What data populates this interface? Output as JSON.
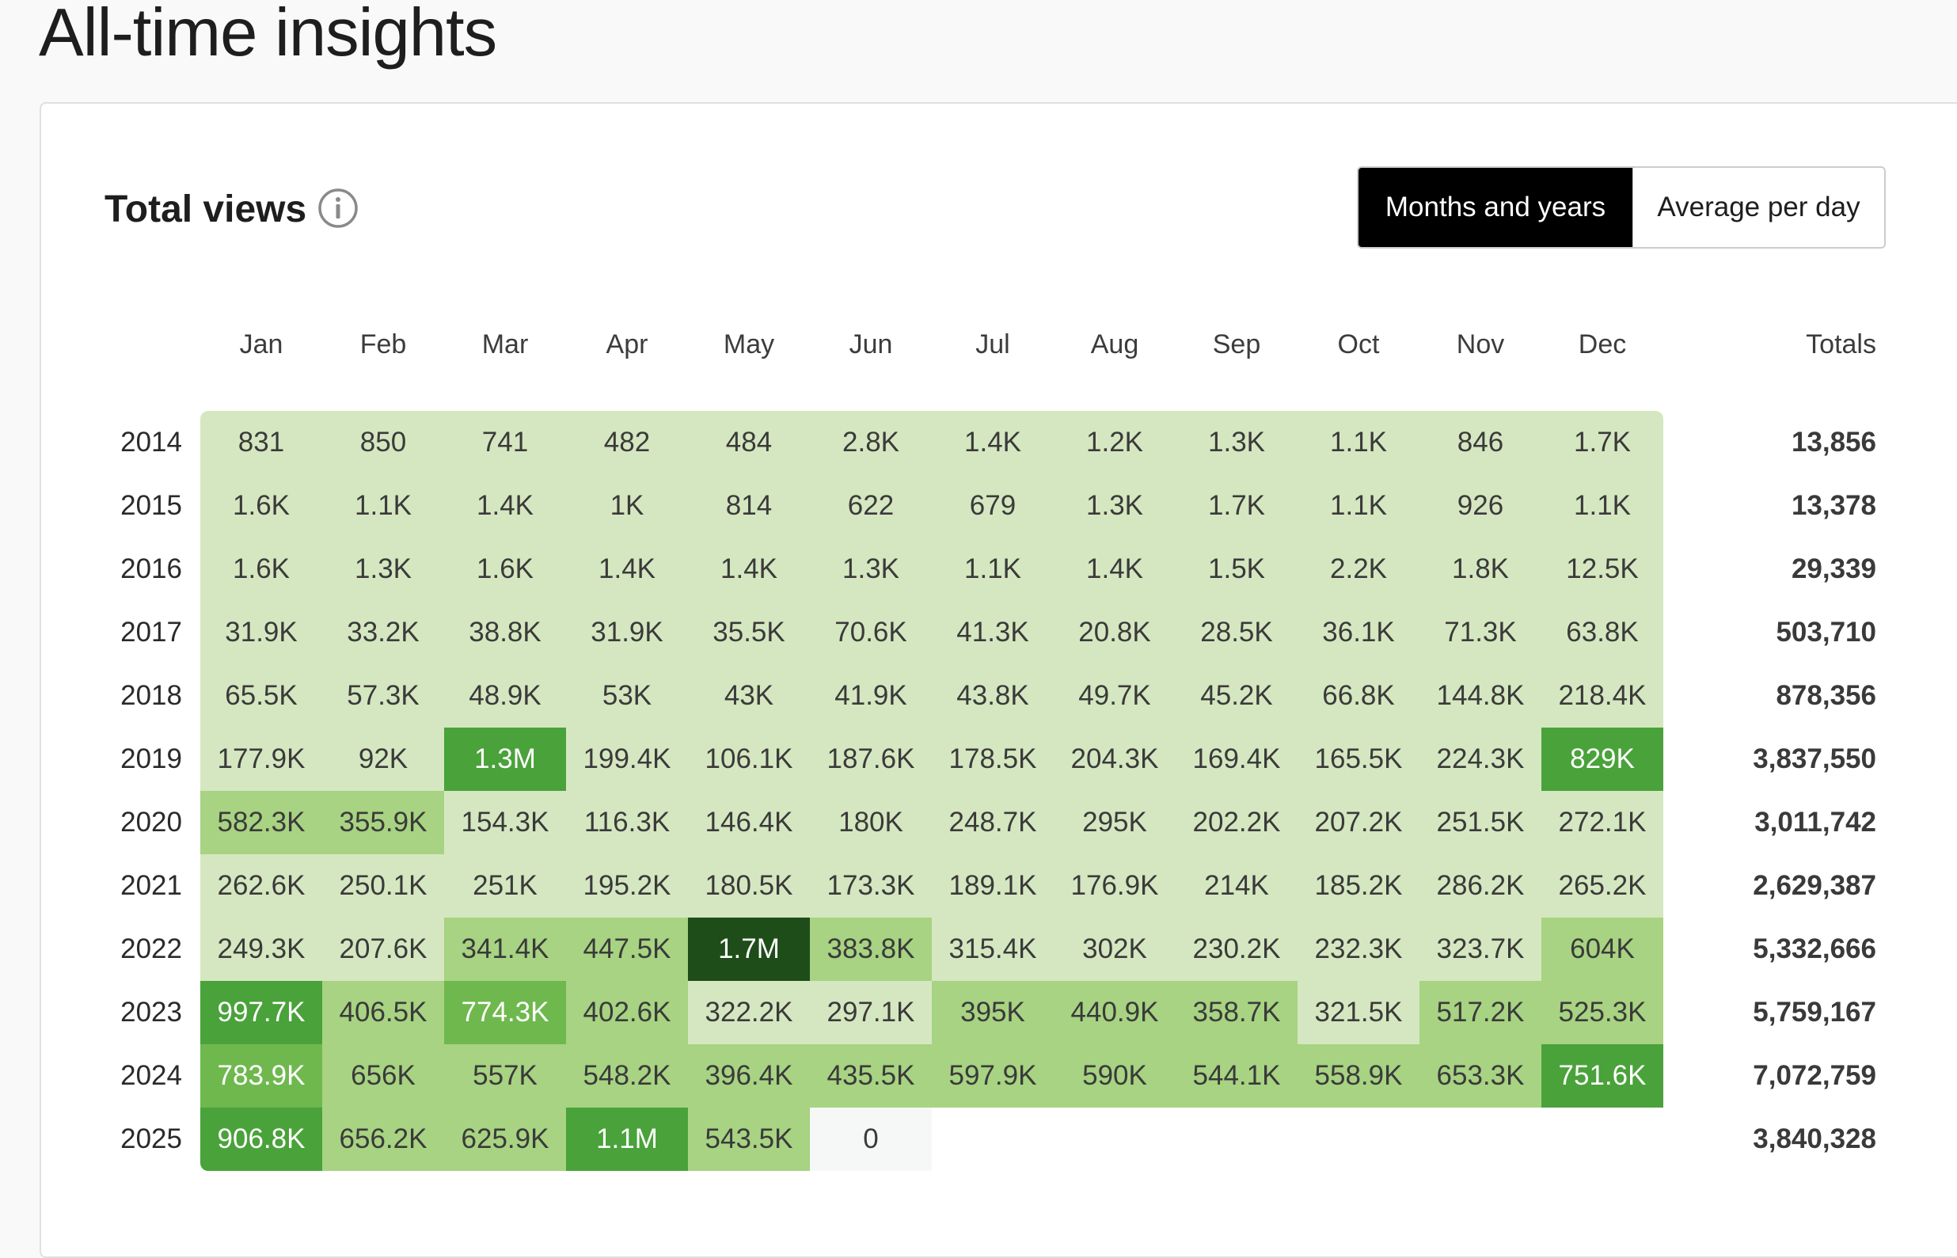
{
  "page_title": "All-time insights",
  "card": {
    "title": "Total views",
    "info_icon": "info-icon"
  },
  "toggle": {
    "active_label": "Months and years",
    "inactive_label": "Average per day"
  },
  "colors": {
    "level0": "#f6f7f7",
    "level1": "#d5e7c0",
    "level2": "#a7d382",
    "level3": "#6fb84e",
    "level4": "#4aa23a",
    "level5": "#1f4d1a"
  },
  "table": {
    "months": [
      "Jan",
      "Feb",
      "Mar",
      "Apr",
      "May",
      "Jun",
      "Jul",
      "Aug",
      "Sep",
      "Oct",
      "Nov",
      "Dec"
    ],
    "totals_label": "Totals",
    "rows": [
      {
        "year": "2014",
        "values": [
          "831",
          "850",
          "741",
          "482",
          "484",
          "2.8K",
          "1.4K",
          "1.2K",
          "1.3K",
          "1.1K",
          "846",
          "1.7K"
        ],
        "levels": [
          1,
          1,
          1,
          1,
          1,
          1,
          1,
          1,
          1,
          1,
          1,
          1
        ],
        "total": "13,856"
      },
      {
        "year": "2015",
        "values": [
          "1.6K",
          "1.1K",
          "1.4K",
          "1K",
          "814",
          "622",
          "679",
          "1.3K",
          "1.7K",
          "1.1K",
          "926",
          "1.1K"
        ],
        "levels": [
          1,
          1,
          1,
          1,
          1,
          1,
          1,
          1,
          1,
          1,
          1,
          1
        ],
        "total": "13,378"
      },
      {
        "year": "2016",
        "values": [
          "1.6K",
          "1.3K",
          "1.6K",
          "1.4K",
          "1.4K",
          "1.3K",
          "1.1K",
          "1.4K",
          "1.5K",
          "2.2K",
          "1.8K",
          "12.5K"
        ],
        "levels": [
          1,
          1,
          1,
          1,
          1,
          1,
          1,
          1,
          1,
          1,
          1,
          1
        ],
        "total": "29,339"
      },
      {
        "year": "2017",
        "values": [
          "31.9K",
          "33.2K",
          "38.8K",
          "31.9K",
          "35.5K",
          "70.6K",
          "41.3K",
          "20.8K",
          "28.5K",
          "36.1K",
          "71.3K",
          "63.8K"
        ],
        "levels": [
          1,
          1,
          1,
          1,
          1,
          1,
          1,
          1,
          1,
          1,
          1,
          1
        ],
        "total": "503,710"
      },
      {
        "year": "2018",
        "values": [
          "65.5K",
          "57.3K",
          "48.9K",
          "53K",
          "43K",
          "41.9K",
          "43.8K",
          "49.7K",
          "45.2K",
          "66.8K",
          "144.8K",
          "218.4K"
        ],
        "levels": [
          1,
          1,
          1,
          1,
          1,
          1,
          1,
          1,
          1,
          1,
          1,
          1
        ],
        "total": "878,356"
      },
      {
        "year": "2019",
        "values": [
          "177.9K",
          "92K",
          "1.3M",
          "199.4K",
          "106.1K",
          "187.6K",
          "178.5K",
          "204.3K",
          "169.4K",
          "165.5K",
          "224.3K",
          "829K"
        ],
        "levels": [
          1,
          1,
          4,
          1,
          1,
          1,
          1,
          1,
          1,
          1,
          1,
          4
        ],
        "total": "3,837,550"
      },
      {
        "year": "2020",
        "values": [
          "582.3K",
          "355.9K",
          "154.3K",
          "116.3K",
          "146.4K",
          "180K",
          "248.7K",
          "295K",
          "202.2K",
          "207.2K",
          "251.5K",
          "272.1K"
        ],
        "levels": [
          2,
          2,
          1,
          1,
          1,
          1,
          1,
          1,
          1,
          1,
          1,
          1
        ],
        "total": "3,011,742"
      },
      {
        "year": "2021",
        "values": [
          "262.6K",
          "250.1K",
          "251K",
          "195.2K",
          "180.5K",
          "173.3K",
          "189.1K",
          "176.9K",
          "214K",
          "185.2K",
          "286.2K",
          "265.2K"
        ],
        "levels": [
          1,
          1,
          1,
          1,
          1,
          1,
          1,
          1,
          1,
          1,
          1,
          1
        ],
        "total": "2,629,387"
      },
      {
        "year": "2022",
        "values": [
          "249.3K",
          "207.6K",
          "341.4K",
          "447.5K",
          "1.7M",
          "383.8K",
          "315.4K",
          "302K",
          "230.2K",
          "232.3K",
          "323.7K",
          "604K"
        ],
        "levels": [
          1,
          1,
          2,
          2,
          5,
          2,
          1,
          1,
          1,
          1,
          1,
          2
        ],
        "total": "5,332,666"
      },
      {
        "year": "2023",
        "values": [
          "997.7K",
          "406.5K",
          "774.3K",
          "402.6K",
          "322.2K",
          "297.1K",
          "395K",
          "440.9K",
          "358.7K",
          "321.5K",
          "517.2K",
          "525.3K"
        ],
        "levels": [
          4,
          2,
          3,
          2,
          1,
          1,
          2,
          2,
          2,
          1,
          2,
          2
        ],
        "total": "5,759,167"
      },
      {
        "year": "2024",
        "values": [
          "783.9K",
          "656K",
          "557K",
          "548.2K",
          "396.4K",
          "435.5K",
          "597.9K",
          "590K",
          "544.1K",
          "558.9K",
          "653.3K",
          "751.6K"
        ],
        "levels": [
          3,
          2,
          2,
          2,
          2,
          2,
          2,
          2,
          2,
          2,
          2,
          4
        ],
        "total": "7,072,759"
      },
      {
        "year": "2025",
        "values": [
          "906.8K",
          "656.2K",
          "625.9K",
          "1.1M",
          "543.5K",
          "0"
        ],
        "levels": [
          4,
          2,
          2,
          4,
          2,
          0
        ],
        "total": "3,840,328"
      }
    ]
  }
}
